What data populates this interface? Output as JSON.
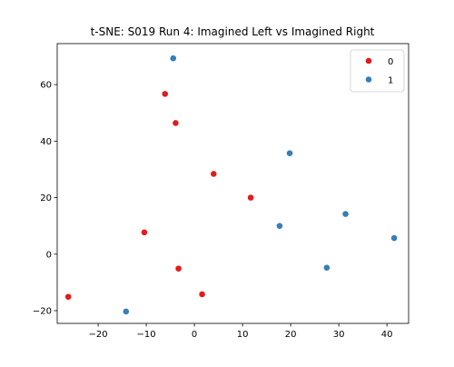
{
  "chart_data": {
    "type": "scatter",
    "title": "t-SNE: S019 Run 4: Imagined Left vs Imagined Right",
    "xlabel": "",
    "ylabel": "",
    "xlim": [
      -28.5,
      44.5
    ],
    "ylim": [
      -24.5,
      74.5
    ],
    "xticks": [
      -20,
      -10,
      0,
      10,
      20,
      30,
      40
    ],
    "yticks": [
      -20,
      0,
      20,
      40,
      60
    ],
    "grid": false,
    "legend_position": "top-right",
    "series": [
      {
        "name": "0",
        "color": "#e41a1c",
        "points": [
          {
            "x": -6.1,
            "y": 56.7
          },
          {
            "x": -3.9,
            "y": 46.4
          },
          {
            "x": 4.0,
            "y": 28.4
          },
          {
            "x": 11.7,
            "y": 20.0
          },
          {
            "x": -10.4,
            "y": 7.7
          },
          {
            "x": -3.3,
            "y": -5.1
          },
          {
            "x": 1.6,
            "y": -14.2
          },
          {
            "x": -26.2,
            "y": -15.1
          }
        ]
      },
      {
        "name": "1",
        "color": "#377eb8",
        "points": [
          {
            "x": -4.4,
            "y": 69.3
          },
          {
            "x": 19.8,
            "y": 35.7
          },
          {
            "x": 17.7,
            "y": 10.0
          },
          {
            "x": 31.4,
            "y": 14.2
          },
          {
            "x": 41.5,
            "y": 5.7
          },
          {
            "x": 27.5,
            "y": -4.8
          },
          {
            "x": -14.2,
            "y": -20.3
          }
        ]
      }
    ]
  }
}
